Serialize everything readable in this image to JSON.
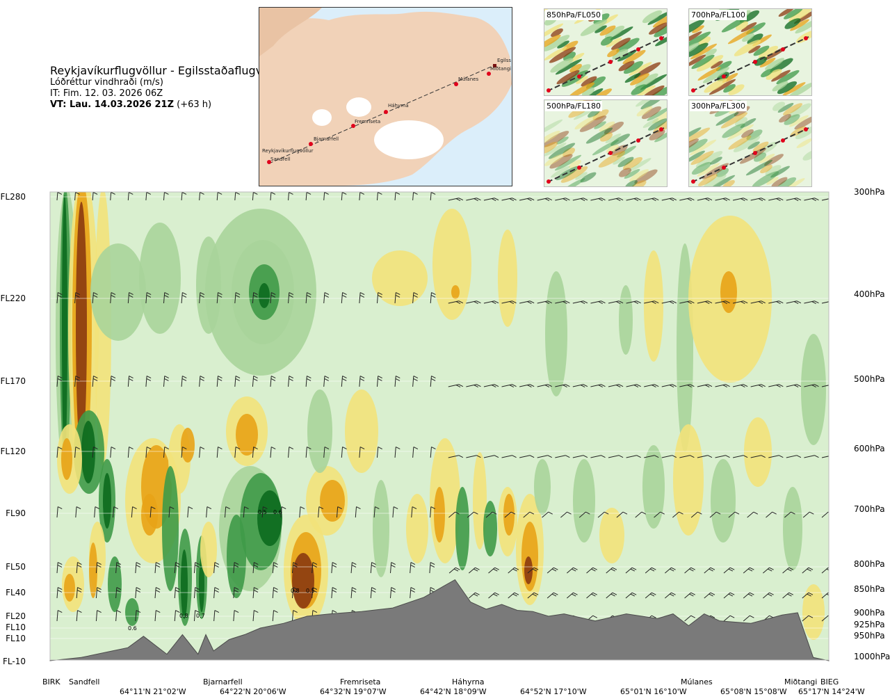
{
  "header": {
    "route": "Reykjavíkurflugvöllur - Egilsstaðaflugvöllur",
    "variable": "Lóðréttur vindhraði (m/s)",
    "issue_time": "IT: Fim. 12. 03. 2026 06Z",
    "valid_label": "VT: Lau. 14.03.2026 21Z",
    "valid_offset": "(+63 h)"
  },
  "map": {
    "waypoints": [
      "Reykjavíkurflugvöllur",
      "Sandfell",
      "Bjarnarfell",
      "Fremriseta",
      "Háhyrna",
      "Múlanes",
      "Miðtangi",
      "Egilss"
    ],
    "colors": {
      "sea": "#dbeefa",
      "land": "#f1d2b8",
      "ice": "#ffffff",
      "route": "#333333",
      "point": "#e0001b"
    }
  },
  "insets": [
    {
      "label": "850hPa/FL050"
    },
    {
      "label": "700hPa/FL100"
    },
    {
      "label": "500hPa/FL180"
    },
    {
      "label": "300hPa/FL300"
    }
  ],
  "chart_data": {
    "type": "heatmap",
    "title": "Lóðréttur vindhraði (m/s)",
    "left_axis_labels": [
      "FL280",
      "FL220",
      "FL170",
      "FL120",
      "FL90",
      "FL50",
      "FL40",
      "FL20",
      "FL10",
      "FL10",
      "FL-10"
    ],
    "right_axis_labels": [
      "300hPa",
      "400hPa",
      "500hPa",
      "600hPa",
      "700hPa",
      "800hPa",
      "850hPa",
      "900hPa",
      "925hPa",
      "950hPa",
      "1000hPa"
    ],
    "station_labels": [
      "BIRK",
      "Sandfell",
      "Bjarnarfell",
      "Fremriseta",
      "Háhyrna",
      "Múlanes",
      "Miðtangi",
      "BIEG"
    ],
    "coordinate_labels": [
      "64°11'N 21°02'W",
      "64°22'N 20°06'W",
      "64°32'N 19°07'W",
      "64°42'N 18°09'W",
      "64°52'N 17°10'W",
      "65°01'N 16°10'W",
      "65°08'N 15°08'W",
      "65°17'N 14°24'W"
    ],
    "annotations": [
      "0.5",
      "0.6",
      "0.8",
      "0.5",
      "0.8",
      "0.7",
      "0.6"
    ],
    "colors": {
      "strong_down": "#8b3a0f",
      "down": "#e8a317",
      "weak_down": "#f2e27a",
      "neutral": "#d9efcf",
      "weak_up": "#a8d49a",
      "up": "#3f9a48",
      "strong_up": "#0c6a1e",
      "terrain": "#7a7a7a"
    },
    "terrain_profile": {
      "x_fraction": [
        0,
        0.04,
        0.08,
        0.1,
        0.12,
        0.15,
        0.17,
        0.19,
        0.2,
        0.21,
        0.23,
        0.25,
        0.27,
        0.3,
        0.33,
        0.36,
        0.4,
        0.44,
        0.48,
        0.52,
        0.54,
        0.56,
        0.58,
        0.6,
        0.62,
        0.64,
        0.66,
        0.7,
        0.74,
        0.78,
        0.8,
        0.82,
        0.84,
        0.86,
        0.9,
        0.94,
        0.96,
        0.98,
        1.0
      ],
      "level_fl": [
        -12,
        -8,
        -4,
        -2,
        5,
        -6,
        6,
        -6,
        6,
        -4,
        3,
        6,
        10,
        14,
        20,
        22,
        24,
        27,
        36,
        45,
        32,
        26,
        30,
        25,
        24,
        20,
        22,
        16,
        22,
        18,
        22,
        12,
        22,
        16,
        14,
        21,
        23,
        -8,
        -10
      ]
    }
  }
}
